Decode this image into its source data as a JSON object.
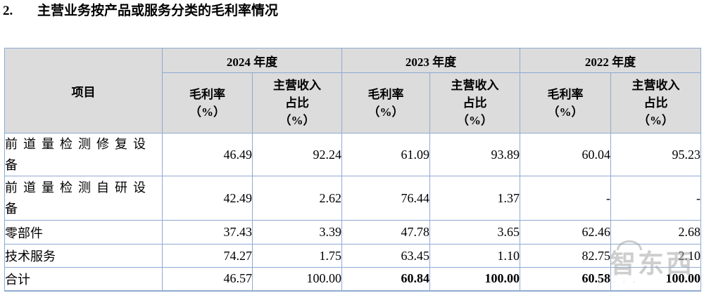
{
  "title": {
    "number": "2.",
    "text": "主营业务按产品或服务分类的毛利率情况"
  },
  "table": {
    "item_header": "项目",
    "year_headers": [
      "2024 年度",
      "2023 年度",
      "2022 年度"
    ],
    "sub_headers": {
      "gross_margin": "毛利率\n（%）",
      "revenue_share": "主营收入\n占比\n（%）"
    },
    "rows": [
      {
        "label": "前道量检测修复设备",
        "values": [
          "46.49",
          "92.24",
          "61.09",
          "93.89",
          "60.04",
          "95.23"
        ]
      },
      {
        "label": "前道量检测自研设备",
        "values": [
          "42.49",
          "2.62",
          "76.44",
          "1.37",
          "-",
          "-"
        ]
      },
      {
        "label": "零部件",
        "values": [
          "37.43",
          "3.39",
          "47.78",
          "3.65",
          "62.46",
          "2.68"
        ]
      },
      {
        "label": "技术服务",
        "values": [
          "74.27",
          "1.75",
          "63.45",
          "1.10",
          "82.75",
          "2.10"
        ]
      },
      {
        "label": "合计",
        "values": [
          "46.57",
          "100.00",
          "60.84",
          "100.00",
          "60.58",
          "100.00"
        ],
        "bold": [
          false,
          false,
          true,
          true,
          true,
          true
        ]
      }
    ]
  },
  "watermark": {
    "text": "智东西",
    "dots": "· · ·"
  },
  "colors": {
    "table_border": "#8eaad2",
    "header_background": "#dcdcdc",
    "watermark_gray": "#a5a5a5",
    "text": "#000000"
  }
}
